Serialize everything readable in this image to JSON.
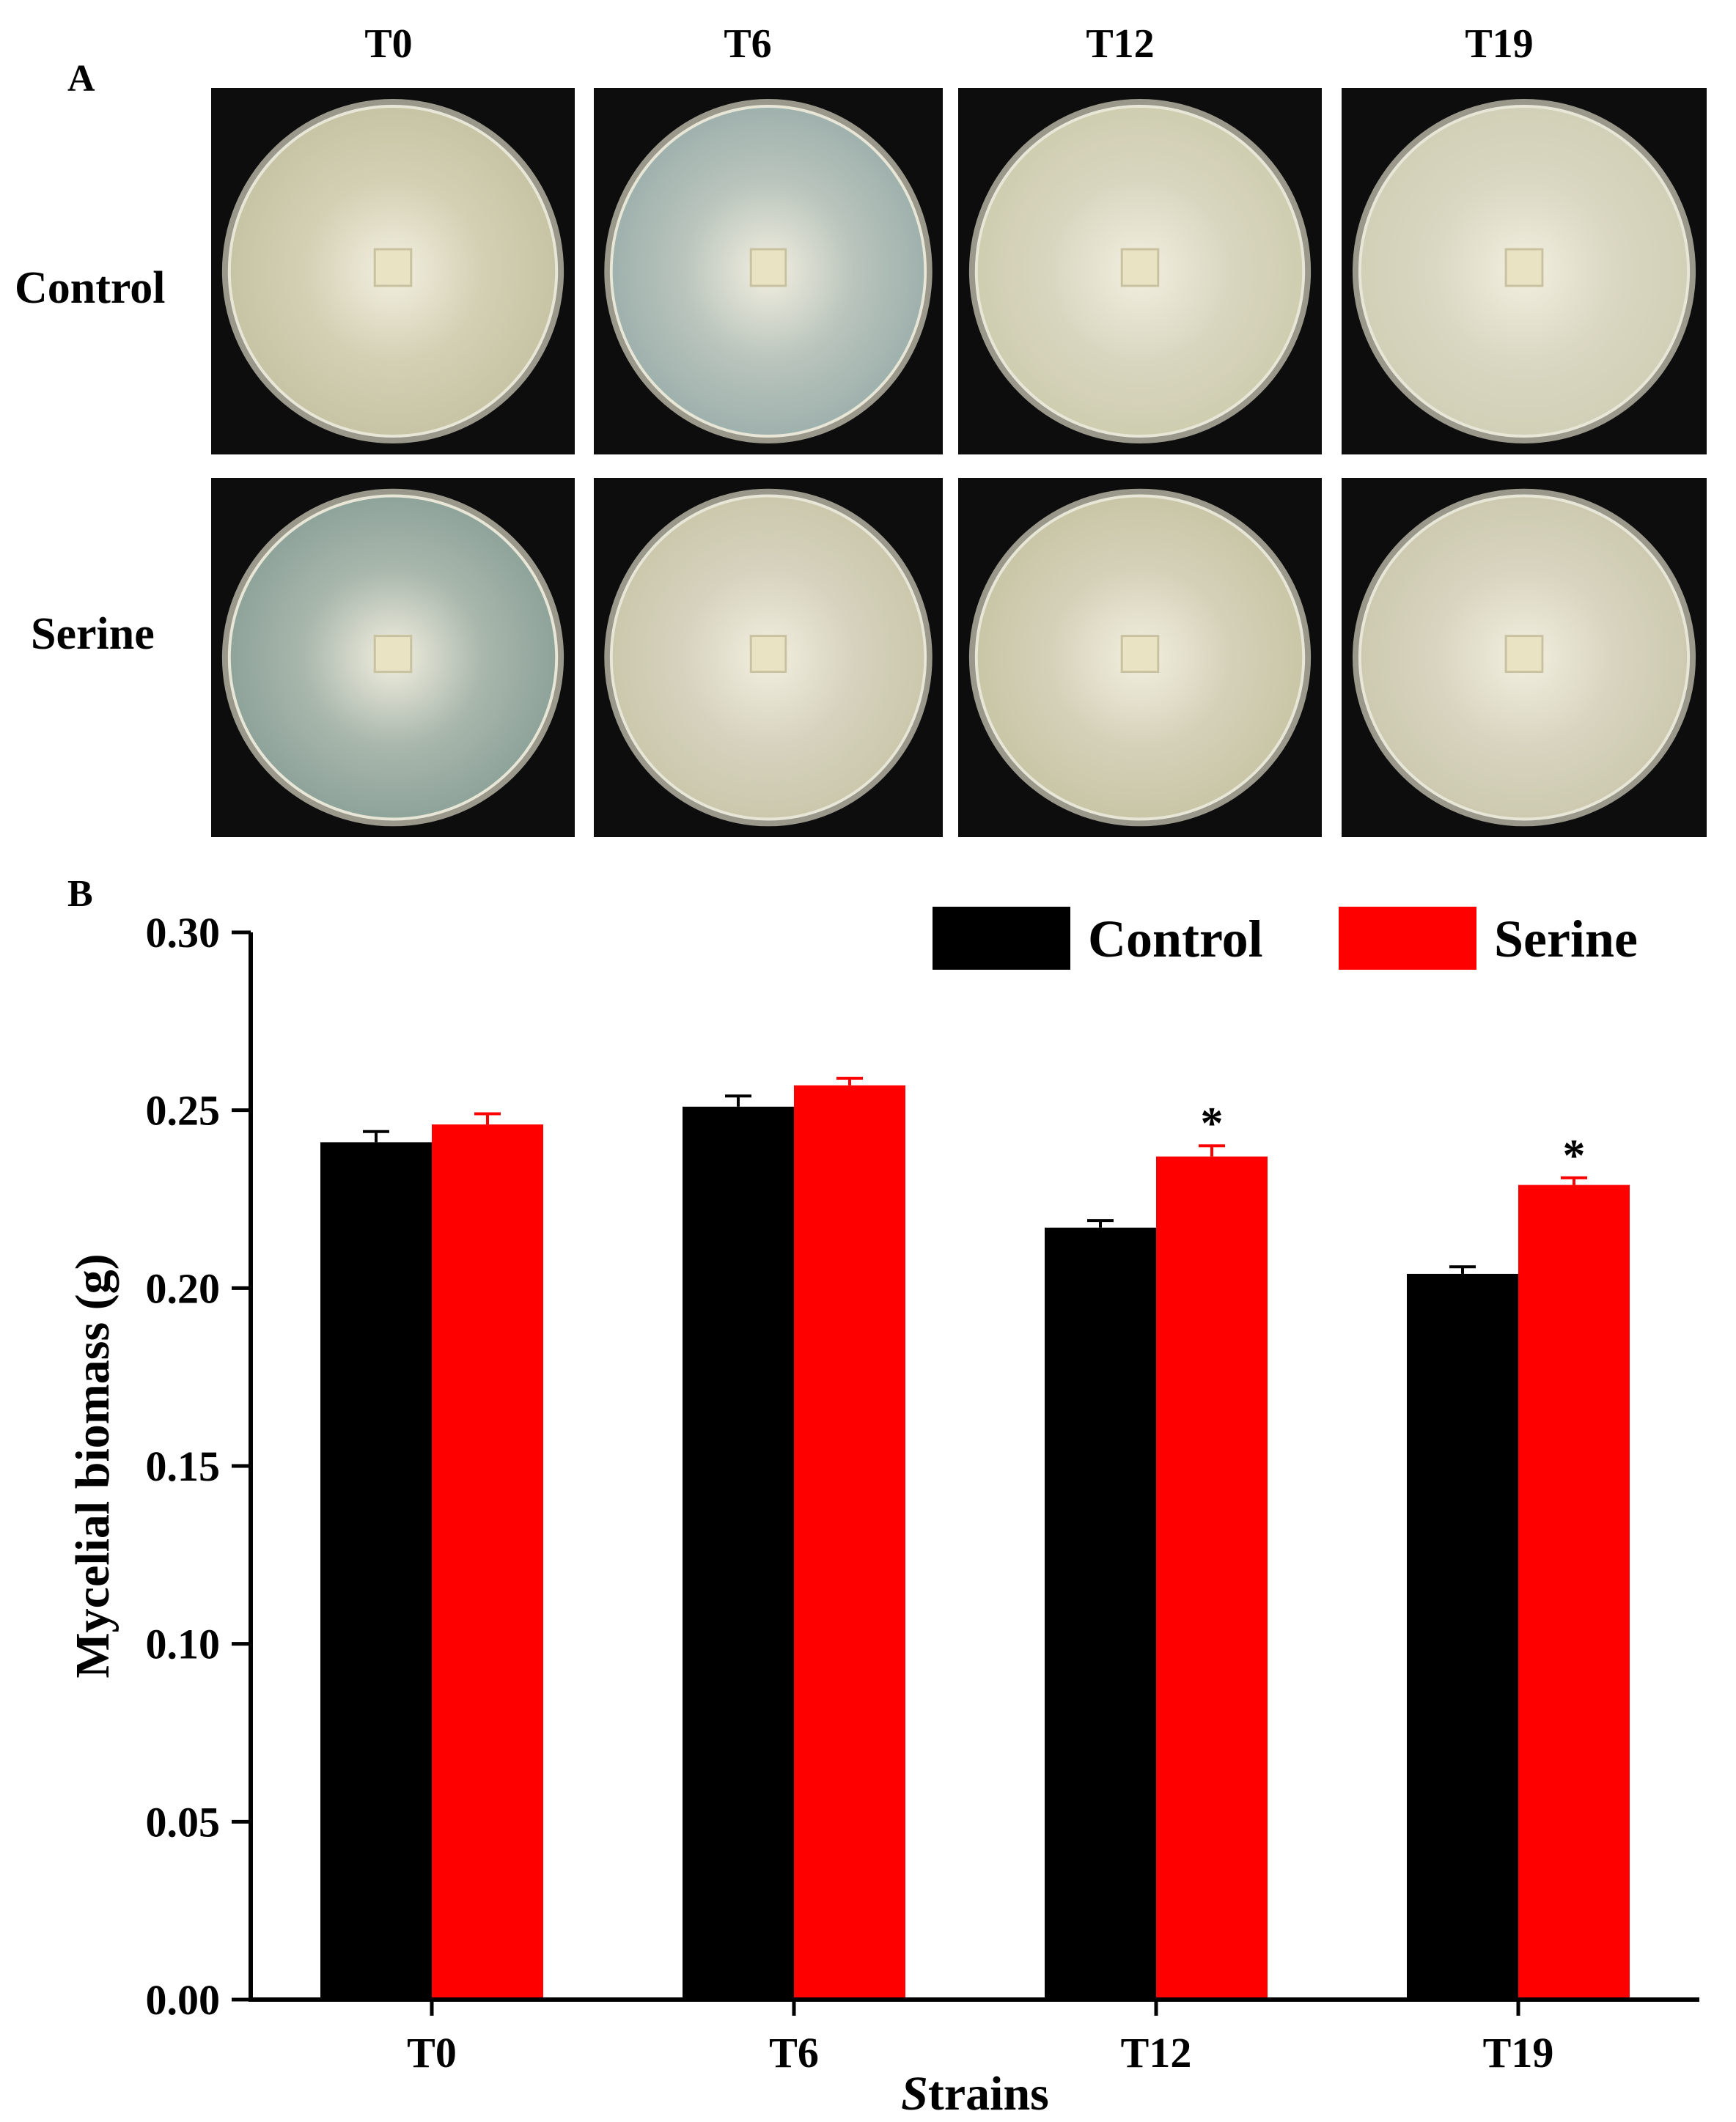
{
  "panel_a": {
    "label": "A",
    "columns": [
      "T0",
      "T6",
      "T12",
      "T19"
    ],
    "rows": [
      "Control",
      "Serine"
    ],
    "plates": [
      [
        {
          "tone": "#d4d0b4",
          "agar": "#c7c4a5"
        },
        {
          "tone": "#b9c4bc",
          "agar": "#9fb1ad"
        },
        {
          "tone": "#d9d6c0",
          "agar": "#cfcdb0"
        },
        {
          "tone": "#dad7c2",
          "agar": "#d2d0b7"
        }
      ],
      [
        {
          "tone": "#a9b7ac",
          "agar": "#8ea39a"
        },
        {
          "tone": "#d6d2be",
          "agar": "#cbc8ad"
        },
        {
          "tone": "#d5d1b9",
          "agar": "#c9c6a7"
        },
        {
          "tone": "#d8d4bf",
          "agar": "#cdcab1"
        }
      ]
    ]
  },
  "panel_b": {
    "label": "B"
  },
  "chart_data": {
    "type": "bar",
    "categories": [
      "T0",
      "T6",
      "T12",
      "T19"
    ],
    "series": [
      {
        "name": "Control",
        "color": "#000000",
        "values": [
          0.241,
          0.251,
          0.217,
          0.204
        ],
        "errors": [
          0.003,
          0.003,
          0.002,
          0.002
        ]
      },
      {
        "name": "Serine",
        "color": "#ff0000",
        "values": [
          0.246,
          0.257,
          0.237,
          0.229
        ],
        "errors": [
          0.003,
          0.002,
          0.003,
          0.002
        ]
      }
    ],
    "annotations": [
      "",
      "",
      "*",
      "*"
    ],
    "xlabel_prefix": "S",
    "xlabel_rest": "trains",
    "ylabel": "Mycelial biomass (g)",
    "ylim": [
      0,
      0.3
    ],
    "yticks": [
      0.0,
      0.05,
      0.1,
      0.15,
      0.2,
      0.25,
      0.3
    ],
    "ytick_labels": [
      "0.00",
      "0.05",
      "0.10",
      "0.15",
      "0.20",
      "0.25",
      "0.30"
    ],
    "grid": false,
    "legend_position": "top-right"
  }
}
